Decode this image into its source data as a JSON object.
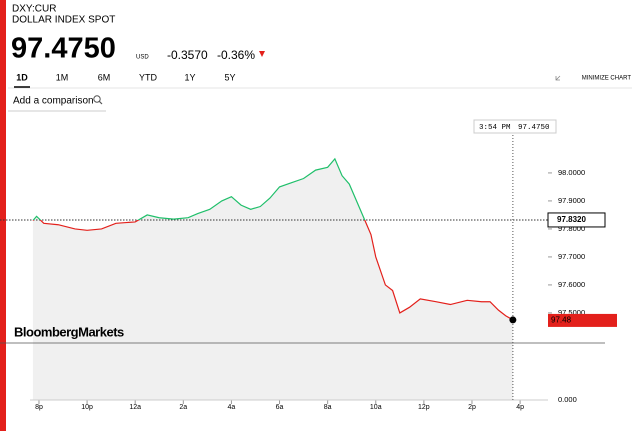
{
  "header": {
    "ticker": "DXY:CUR",
    "name": "DOLLAR INDEX SPOT",
    "price": "97.4750",
    "currency": "USD",
    "change": "-0.3570",
    "change_pct": "-0.36%"
  },
  "tabs": [
    "1D",
    "1M",
    "6M",
    "YTD",
    "1Y",
    "5Y"
  ],
  "minimize": "MINIMIZE CHART",
  "comparison_placeholder": "Add a comparison",
  "chart_data": {
    "type": "line",
    "x": [
      19.75,
      19.9,
      20.2,
      20.8,
      21.5,
      22,
      22.6,
      23.2,
      24,
      24.5,
      25,
      25.6,
      26.2,
      26.6,
      27.1,
      27.6,
      28,
      28.4,
      28.8,
      29.2,
      29.6,
      30,
      30.5,
      31,
      31.5,
      32,
      32.3,
      32.6,
      32.9,
      33.2,
      33.55,
      33.8,
      34,
      34.4,
      34.7,
      35,
      35.4,
      35.85,
      36.5,
      37.1,
      37.8,
      38.4,
      38.75,
      39.1,
      39.4,
      39.7
    ],
    "series": [
      {
        "values": [
          97.83,
          97.845,
          97.82,
          97.815,
          97.8,
          97.795,
          97.8,
          97.82,
          97.825,
          97.85,
          97.84,
          97.835,
          97.84,
          97.855,
          97.87,
          97.9,
          97.915,
          97.885,
          97.87,
          97.88,
          97.91,
          97.95,
          97.965,
          97.98,
          98.01,
          98.02,
          98.05,
          97.99,
          97.96,
          97.9,
          97.83,
          97.78,
          97.7,
          97.6,
          97.58,
          97.5,
          97.52,
          97.55,
          97.54,
          97.53,
          97.545,
          97.54,
          97.54,
          97.51,
          97.49,
          97.475
        ]
      }
    ],
    "up_color": "#1fbf6a",
    "down_color": "#e3201b",
    "xlim": [
      18.38,
      41.16
    ],
    "ylim": [
      97.189,
      98.189
    ],
    "xticks": [
      {
        "value": 20,
        "label": "8p"
      },
      {
        "value": 22,
        "label": "10p"
      },
      {
        "value": 24,
        "label": "12a"
      },
      {
        "value": 26,
        "label": "2a"
      },
      {
        "value": 28,
        "label": "4a"
      },
      {
        "value": 30,
        "label": "6a"
      },
      {
        "value": 32,
        "label": "8a"
      },
      {
        "value": 34,
        "label": "10a"
      },
      {
        "value": 36,
        "label": "12p"
      },
      {
        "value": 38,
        "label": "2p"
      },
      {
        "value": 40,
        "label": "4p"
      }
    ],
    "yticks": [
      {
        "value": 98,
        "label": "98.0000"
      },
      {
        "value": 97.9,
        "label": "97.9000"
      },
      {
        "value": 97.8,
        "label": "97.8000"
      },
      {
        "value": 97.7,
        "label": "97.7000"
      },
      {
        "value": 97.6,
        "label": "97.6000"
      },
      {
        "value": 97.5,
        "label": "97.5000"
      }
    ],
    "axis_bottom_label": "0.000",
    "previous_close": 97.832,
    "previous_close_label": "97.8320",
    "last_label": "97.48",
    "crosshair_time": "3:54 PM",
    "crosshair_value": "97.4750",
    "watermark": "BloombergMarkets"
  }
}
